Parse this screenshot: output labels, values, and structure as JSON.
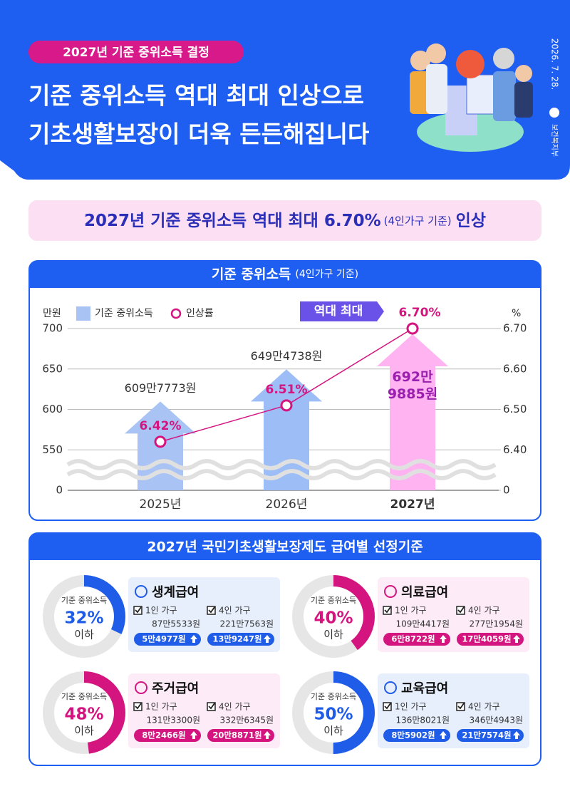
{
  "header": {
    "tag": "2027년 기준 중위소득 결정",
    "title_lines": [
      "기준 중위소득 역대 최대 인상으로",
      "기초생활보장이 더욱 든든해집니다"
    ],
    "date": "2026. 7. 28.",
    "ministry": "보건복지부"
  },
  "banner": {
    "text": "2027년 기준 중위소득 역대 최대 6.70%",
    "note": "(4인가구 기준)",
    "suffix": "인상"
  },
  "chart_panel": {
    "title": "기준 중위소득",
    "note": "(4인가구 기준)"
  },
  "chart_data": {
    "type": "bar",
    "categories": [
      "2025년",
      "2026년",
      "2027년"
    ],
    "series": [
      {
        "name": "기준 중위소득",
        "colors": [
          "#a9c4f4",
          "#9dbdf6",
          "#ffb3f1"
        ],
        "values": [
          609.7773,
          649.4738,
          692.9885
        ],
        "value_labels": [
          "609만7773원",
          "649만4738원",
          "692만\n9885원"
        ]
      },
      {
        "name": "인상률",
        "type": "line",
        "axis": "y2",
        "color": "#d4147f",
        "values": [
          6.42,
          6.51,
          6.7
        ],
        "value_labels": [
          "6.42%",
          "6.51%",
          "6.70%"
        ]
      }
    ],
    "ylim": [
      0,
      700
    ],
    "yticks": [
      0,
      550,
      600,
      650,
      700
    ],
    "y2lim": [
      0,
      6.7
    ],
    "y2ticks": [
      0,
      {
        "value": 6.4,
        "label": "6.40"
      },
      {
        "value": 6.5,
        "label": "6.50"
      },
      {
        "value": 6.6,
        "label": "6.60"
      },
      {
        "value": 6.7,
        "label": "6.70"
      }
    ],
    "y_label": "만원",
    "y2_label": "%",
    "axis_break": true,
    "grid": true,
    "legend": "top-left",
    "annotation": "역대 최대"
  },
  "benefits": {
    "title": "2027년 국민기초생활보장제도 급여별 선정기준",
    "cards": [
      {
        "ring_label": "기준 중위소득",
        "percent": 32,
        "percent_label": "32%",
        "below": "이하",
        "name": "생계급여",
        "households": [
          {
            "label": "1인 가구",
            "amount": "87만5533원",
            "increase": "5만4977원"
          },
          {
            "label": "4인 가구",
            "amount": "221만7563원",
            "increase": "13만9247원"
          }
        ]
      },
      {
        "ring_label": "기준 중위소득",
        "percent": 40,
        "percent_label": "40%",
        "below": "이하",
        "name": "의료급여",
        "households": [
          {
            "label": "1인 가구",
            "amount": "109만4417원",
            "increase": "6만8722원"
          },
          {
            "label": "4인 가구",
            "amount": "277만1954원",
            "increase": "17만4059원"
          }
        ]
      },
      {
        "ring_label": "기준 중위소득",
        "percent": 48,
        "percent_label": "48%",
        "below": "이하",
        "name": "주거급여",
        "households": [
          {
            "label": "1인 가구",
            "amount": "131만3300원",
            "increase": "8만2466원"
          },
          {
            "label": "4인 가구",
            "amount": "332만6345원",
            "increase": "20만8871원"
          }
        ]
      },
      {
        "ring_label": "기준 중위소득",
        "percent": 50,
        "percent_label": "50%",
        "below": "이하",
        "name": "교육급여",
        "households": [
          {
            "label": "1인 가구",
            "amount": "136만8021원",
            "increase": "8만5902원"
          },
          {
            "label": "4인 가구",
            "amount": "346만4943원",
            "increase": "21만7574원"
          }
        ]
      }
    ]
  }
}
